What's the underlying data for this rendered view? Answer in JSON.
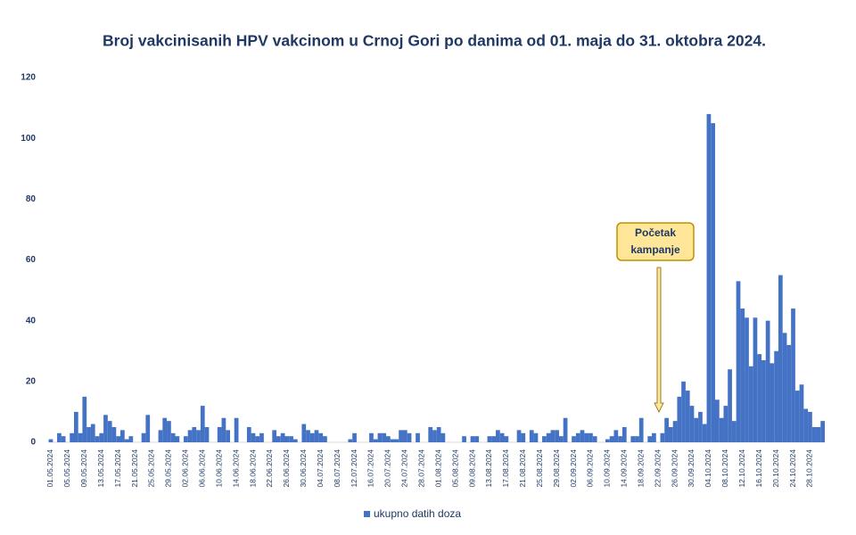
{
  "chart_data": {
    "type": "bar",
    "title": "Broj vakcinisanih HPV vakcinom u Crnoj Gori po danima od 01. maja do 31. oktobra 2024.",
    "categories": [
      "01.05.2024",
      null,
      null,
      null,
      "05.05.2024",
      null,
      null,
      null,
      "09.05.2024",
      null,
      null,
      null,
      "13.05.2024",
      null,
      null,
      null,
      "17.05.2024",
      null,
      null,
      null,
      "21.05.2024",
      null,
      null,
      null,
      "25.05.2024",
      null,
      null,
      null,
      "29.05.2024",
      null,
      null,
      null,
      "02.06.2024",
      null,
      null,
      null,
      "06.06.2024",
      null,
      null,
      null,
      "10.06.2024",
      null,
      null,
      null,
      "14.06.2024",
      null,
      null,
      null,
      "18.06.2024",
      null,
      null,
      null,
      "22.06.2024",
      null,
      null,
      null,
      "26.06.2024",
      null,
      null,
      null,
      "30.06.2024",
      null,
      null,
      null,
      "04.07.2024",
      null,
      null,
      null,
      "08.07.2024",
      null,
      null,
      null,
      "12.07.2024",
      null,
      null,
      null,
      "16.07.2024",
      null,
      null,
      null,
      "20.07.2024",
      null,
      null,
      null,
      "24.07.2024",
      null,
      null,
      null,
      "28.07.2024",
      null,
      null,
      null,
      "01.08.2024",
      null,
      null,
      null,
      "05.08.2024",
      null,
      null,
      null,
      "09.08.2024",
      null,
      null,
      null,
      "13.08.2024",
      null,
      null,
      null,
      "17.08.2024",
      null,
      null,
      null,
      "21.08.2024",
      null,
      null,
      null,
      "25.08.2024",
      null,
      null,
      null,
      "29.08.2024",
      null,
      null,
      null,
      "02.09.2024",
      null,
      null,
      null,
      "06.09.2024",
      null,
      null,
      null,
      "10.09.2024",
      null,
      null,
      null,
      "14.09.2024",
      null,
      null,
      null,
      "18.09.2024",
      null,
      null,
      null,
      "22.09.2024",
      null,
      null,
      null,
      "26.09.2024",
      null,
      null,
      null,
      "30.09.2024",
      null,
      null,
      null,
      "04.10.2024",
      null,
      null,
      null,
      "08.10.2024",
      null,
      null,
      null,
      "12.10.2024",
      null,
      null,
      null,
      "16.10.2024",
      null,
      null,
      null,
      "20.10.2024",
      null,
      null,
      null,
      "24.10.2024",
      null,
      null,
      null,
      "28.10.2024",
      null,
      null,
      null
    ],
    "series": [
      {
        "name": "ukupno datih doza",
        "color": "#4472c4",
        "values": [
          1,
          0,
          3,
          2,
          0,
          3,
          10,
          3,
          15,
          5,
          6,
          2,
          3,
          9,
          7,
          5,
          2,
          4,
          1,
          2,
          0,
          0,
          3,
          9,
          0,
          0,
          4,
          8,
          7,
          3,
          2,
          0,
          2,
          4,
          5,
          4,
          12,
          5,
          0,
          0,
          5,
          8,
          4,
          0,
          8,
          0,
          0,
          5,
          3,
          2,
          3,
          0,
          0,
          4,
          2,
          3,
          2,
          2,
          1,
          0,
          6,
          4,
          3,
          4,
          3,
          2,
          0,
          0,
          0,
          0,
          0,
          1,
          3,
          0,
          0,
          0,
          3,
          1,
          3,
          3,
          2,
          1,
          1,
          4,
          4,
          3,
          0,
          3,
          0,
          0,
          5,
          4,
          5,
          3,
          0,
          0,
          0,
          0,
          2,
          0,
          2,
          2,
          0,
          0,
          2,
          2,
          4,
          3,
          2,
          0,
          0,
          4,
          3,
          0,
          4,
          3,
          0,
          2,
          3,
          4,
          4,
          2,
          8,
          0,
          2,
          3,
          4,
          3,
          3,
          2,
          0,
          0,
          1,
          2,
          4,
          2,
          5,
          0,
          2,
          2,
          8,
          0,
          2,
          3,
          0,
          3,
          8,
          5,
          7,
          15,
          20,
          17,
          12,
          8,
          10,
          6,
          108,
          105,
          14,
          8,
          12,
          24,
          7,
          53,
          44,
          41,
          25,
          41,
          29,
          27,
          40,
          26,
          30,
          55,
          36,
          32,
          44,
          17,
          19,
          11,
          10,
          5,
          5,
          7
        ]
      }
    ],
    "ylim": [
      0,
      120
    ],
    "yticks": [
      0,
      20,
      40,
      60,
      80,
      100,
      120
    ],
    "grid": false,
    "legend": "bottom",
    "annotation": {
      "lines": [
        "Početak",
        "kampanje"
      ]
    }
  }
}
